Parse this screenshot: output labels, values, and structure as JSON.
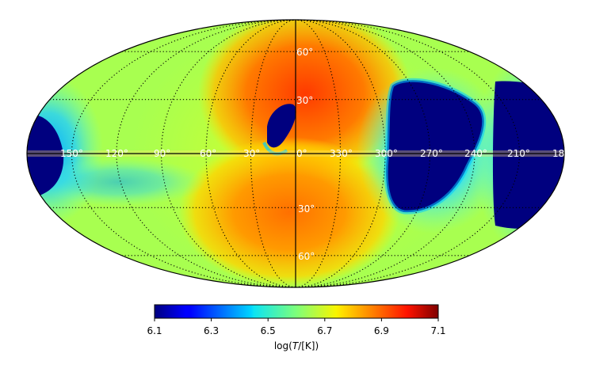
{
  "map": {
    "projection": "mollweide",
    "longitude_labels": [
      "150°",
      "120°",
      "90°",
      "60°",
      "30°",
      "0°",
      "330°",
      "300°",
      "270°",
      "240°",
      "210°",
      "18"
    ],
    "latitude_labels": [
      "60°",
      "30°",
      "30°",
      "60°"
    ],
    "colormap": "jet",
    "colors": {
      "low": "#00007f",
      "mid_low": "#3fd4ff",
      "mid": "#a4ff53",
      "mid_high": "#ffb300",
      "high": "#7f0000"
    }
  },
  "colorbar": {
    "ticks": [
      "6.1",
      "6.3",
      "6.5",
      "6.7",
      "6.9",
      "7.1"
    ],
    "range": [
      6.1,
      7.1
    ],
    "label_prefix": "log(",
    "label_var": "T",
    "label_suffix": "/[K])"
  }
}
